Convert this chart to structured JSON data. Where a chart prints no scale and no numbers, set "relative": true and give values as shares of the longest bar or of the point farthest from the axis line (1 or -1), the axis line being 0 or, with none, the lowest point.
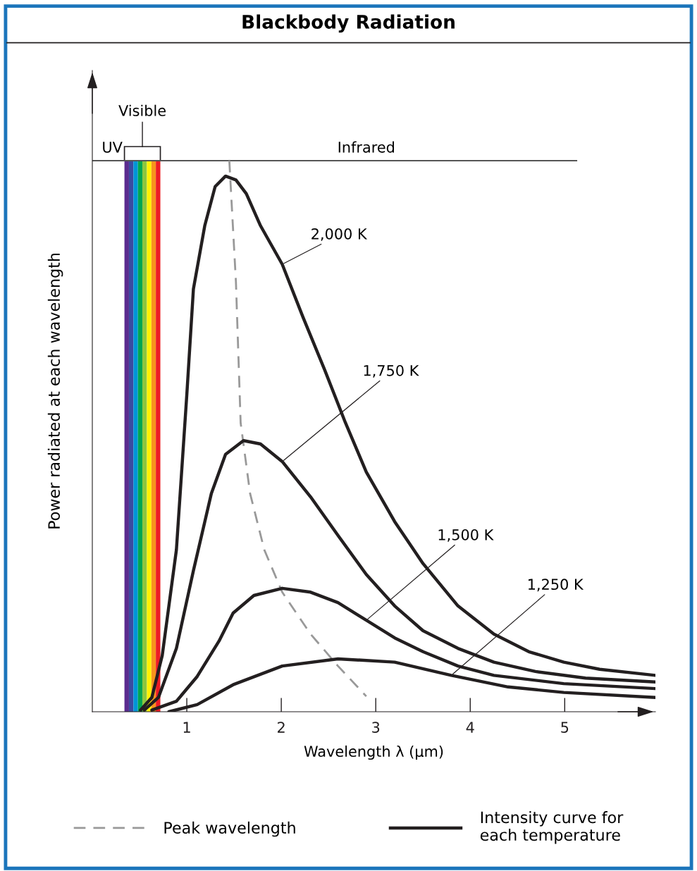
{
  "chart_data": {
    "type": "line",
    "title": "Blackbody Radiation",
    "xlabel": "Wavelength λ (μm)",
    "ylabel": "Power radiated at each wavelength",
    "relative": true,
    "xlim": [
      0,
      5.96
    ],
    "xticks": [
      1,
      2,
      3,
      4,
      5
    ],
    "series": [
      {
        "name": "2,000 K",
        "color": "#231f20",
        "x": [
          0.51,
          0.63,
          0.74,
          0.89,
          1.0,
          1.07,
          1.19,
          1.3,
          1.41,
          1.52,
          1.63,
          1.78,
          2.01,
          2.23,
          2.46,
          2.68,
          2.9,
          3.2,
          3.5,
          3.87,
          4.25,
          4.62,
          4.99,
          5.37,
          5.96
        ],
        "values": [
          0.003,
          0.026,
          0.102,
          0.294,
          0.575,
          0.767,
          0.882,
          0.953,
          0.972,
          0.965,
          0.94,
          0.882,
          0.812,
          0.716,
          0.62,
          0.524,
          0.435,
          0.345,
          0.269,
          0.192,
          0.141,
          0.109,
          0.09,
          0.077,
          0.066
        ]
      },
      {
        "name": "1,750 K",
        "color": "#231f20",
        "x": [
          0.55,
          0.7,
          0.89,
          1.07,
          1.26,
          1.41,
          1.6,
          1.78,
          2.01,
          2.31,
          2.6,
          2.9,
          3.2,
          3.5,
          3.87,
          4.25,
          4.69,
          5.22,
          5.96
        ],
        "values": [
          0.003,
          0.026,
          0.115,
          0.256,
          0.396,
          0.467,
          0.492,
          0.486,
          0.454,
          0.39,
          0.32,
          0.249,
          0.192,
          0.147,
          0.115,
          0.09,
          0.073,
          0.061,
          0.054
        ]
      },
      {
        "name": "1,500 K",
        "color": "#231f20",
        "x": [
          0.63,
          0.89,
          1.11,
          1.34,
          1.49,
          1.71,
          2.01,
          2.31,
          2.6,
          2.9,
          3.2,
          3.5,
          3.87,
          4.25,
          4.99,
          5.96
        ],
        "values": [
          0.003,
          0.019,
          0.064,
          0.128,
          0.179,
          0.211,
          0.224,
          0.217,
          0.198,
          0.166,
          0.134,
          0.109,
          0.083,
          0.066,
          0.051,
          0.042
        ]
      },
      {
        "name": "1,250 K",
        "color": "#231f20",
        "x": [
          0.81,
          1.11,
          1.49,
          2.01,
          2.6,
          3.2,
          3.8,
          4.4,
          4.99,
          5.96
        ],
        "values": [
          0,
          0.013,
          0.049,
          0.083,
          0.096,
          0.09,
          0.066,
          0.045,
          0.035,
          0.026
        ]
      },
      {
        "name": "Peak wavelength",
        "color": "#999999",
        "line_style": "dashed",
        "x": [
          1.45,
          1.52,
          1.57,
          1.67,
          1.82,
          2.01,
          2.31,
          2.6,
          2.9
        ],
        "values": [
          1.0,
          0.78,
          0.524,
          0.396,
          0.294,
          0.217,
          0.141,
          0.083,
          0.028
        ]
      }
    ],
    "bands": [
      {
        "axis": "x",
        "from": 0.34,
        "to": 0.3875,
        "label": null,
        "color": "#5b2c8f"
      },
      {
        "axis": "x",
        "from": 0.3875,
        "to": 0.435,
        "label": null,
        "color": "#3a4ba0"
      },
      {
        "axis": "x",
        "from": 0.435,
        "to": 0.4825,
        "label": null,
        "color": "#0095d6"
      },
      {
        "axis": "x",
        "from": 0.4825,
        "to": 0.53,
        "label": null,
        "color": "#00a651"
      },
      {
        "axis": "x",
        "from": 0.53,
        "to": 0.5775,
        "label": null,
        "color": "#8dc63f"
      },
      {
        "axis": "x",
        "from": 0.5775,
        "to": 0.625,
        "label": null,
        "color": "#fff200"
      },
      {
        "axis": "x",
        "from": 0.625,
        "to": 0.6725,
        "label": null,
        "color": "#f7941d"
      },
      {
        "axis": "x",
        "from": 0.6725,
        "to": 0.72,
        "label": null,
        "color": "#ed1c24"
      }
    ],
    "ref_lines": [
      {
        "axis": "y",
        "value": 1.0,
        "label": "Infrared",
        "color": "#555555"
      }
    ],
    "annotations": [
      "UV",
      "Visible",
      "Intensity curve for\neach temperature"
    ],
    "legend": "bottom",
    "grid": false,
    "marker": "none",
    "line_style": "solid"
  }
}
